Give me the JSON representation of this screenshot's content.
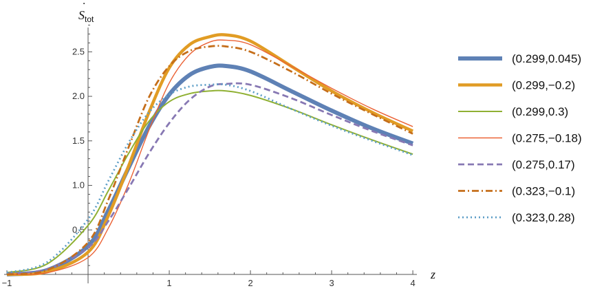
{
  "chart_data": {
    "type": "line",
    "title": "",
    "xlabel": "z",
    "ylabel": "Ṡtot",
    "ylabel_parts": {
      "main": "S",
      "sub": "tot",
      "dot": "˙"
    },
    "xlim": [
      -1,
      4.05
    ],
    "ylim": [
      0,
      2.85
    ],
    "x_ticks": [
      -1,
      1,
      2,
      3,
      4
    ],
    "x_tick_labels": [
      "−1",
      "1",
      "2",
      "3",
      "4"
    ],
    "y_ticks": [
      0.5,
      1.0,
      1.5,
      2.0,
      2.5
    ],
    "y_tick_labels": [
      "0.5",
      "1.0",
      "1.5",
      "2.0",
      "2.5"
    ],
    "grid": false,
    "legend_position": "right",
    "x": [
      -1,
      -0.5,
      0,
      0.25,
      0.5,
      0.75,
      1,
      1.25,
      1.5,
      1.7,
      2,
      2.5,
      3,
      3.5,
      4
    ],
    "series": [
      {
        "name": "(0.299,0.045)",
        "color": "#5e81b5",
        "style": "solid",
        "width": 6,
        "values": [
          0.0,
          0.05,
          0.32,
          0.72,
          1.2,
          1.66,
          2.02,
          2.24,
          2.33,
          2.34,
          2.28,
          2.06,
          1.84,
          1.64,
          1.47
        ]
      },
      {
        "name": "(0.299,−0.2)",
        "color": "#e19c24",
        "style": "solid",
        "width": 4.5,
        "values": [
          0.0,
          0.03,
          0.25,
          0.66,
          1.22,
          1.82,
          2.32,
          2.58,
          2.67,
          2.69,
          2.62,
          2.34,
          2.06,
          1.82,
          1.61
        ]
      },
      {
        "name": "(0.299,0.3)",
        "color": "#8fb032",
        "style": "solid",
        "width": 2,
        "values": [
          0.02,
          0.12,
          0.55,
          0.94,
          1.36,
          1.72,
          1.94,
          2.03,
          2.06,
          2.06,
          2.01,
          1.86,
          1.68,
          1.51,
          1.35
        ]
      },
      {
        "name": "(0.275,−0.18)",
        "color": "#eb6235",
        "style": "solid",
        "width": 1.4,
        "values": [
          0.0,
          0.02,
          0.19,
          0.52,
          1.02,
          1.62,
          2.15,
          2.47,
          2.61,
          2.63,
          2.58,
          2.34,
          2.09,
          1.86,
          1.66
        ]
      },
      {
        "name": "(0.275,0.17)",
        "color": "#8778b3",
        "style": "dashed",
        "width": 2.8,
        "values": [
          0.01,
          0.06,
          0.3,
          0.6,
          0.97,
          1.36,
          1.7,
          1.96,
          2.11,
          2.14,
          2.13,
          1.98,
          1.79,
          1.61,
          1.45
        ]
      },
      {
        "name": "(0.323,−0.1)",
        "color": "#c56e1a",
        "style": "dashdot",
        "width": 2.8,
        "values": [
          0.0,
          0.05,
          0.36,
          0.84,
          1.43,
          1.99,
          2.34,
          2.51,
          2.56,
          2.56,
          2.5,
          2.28,
          2.03,
          1.8,
          1.58
        ]
      },
      {
        "name": "(0.323,0.28)",
        "color": "#5d9ec7",
        "style": "dotted",
        "width": 2.8,
        "values": [
          0.02,
          0.14,
          0.62,
          1.05,
          1.48,
          1.82,
          2.02,
          2.11,
          2.13,
          2.13,
          2.06,
          1.86,
          1.67,
          1.5,
          1.34
        ]
      }
    ]
  }
}
